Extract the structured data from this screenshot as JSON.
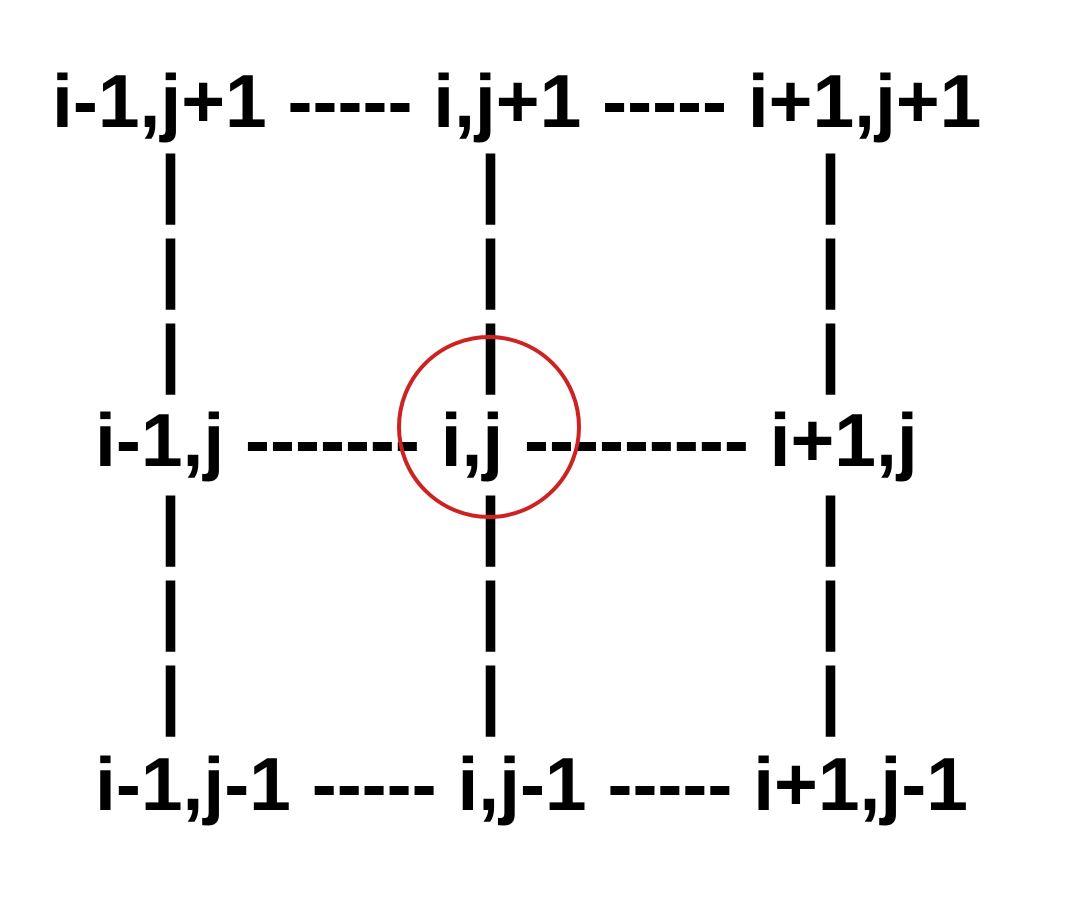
{
  "grid": {
    "row_top": "i-1,j+1 ----- i,j+1 ----- i+1,j+1",
    "row_middle": "i-1,j ------- i,j --------- i+1,j",
    "row_bottom": "i-1,j-1 ----- i,j-1 ----- i+1,j-1",
    "connector": "|"
  },
  "colors": {
    "text": "#000000",
    "highlight_circle": "#cc2222",
    "background": "#ffffff"
  }
}
